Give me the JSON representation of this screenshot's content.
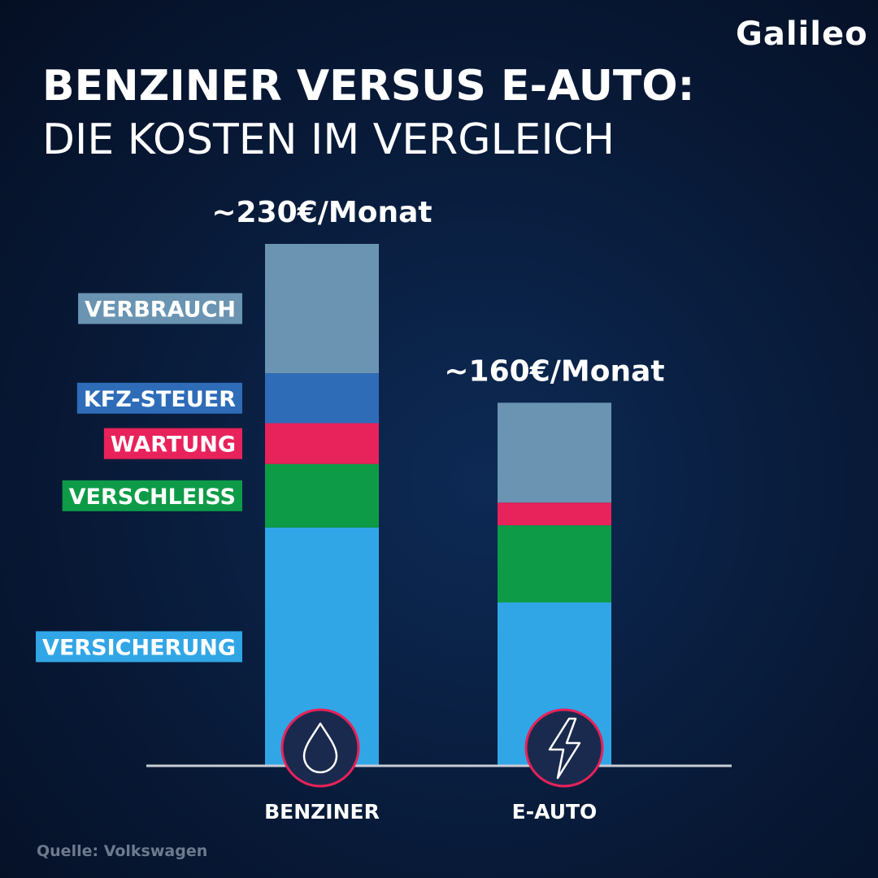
{
  "logo": "Galileo",
  "title_line1": "BENZINER VERSUS E-AUTO:",
  "title_line2": "DIE KOSTEN IM VERGLEICH",
  "source": "Quelle: Volkswagen",
  "colors": {
    "Verbrauch": "#6a94b2",
    "Kfz-Steuer": "#2e6cb8",
    "Wartung": "#e8225a",
    "Verschleiss": "#0e9b48",
    "Versicherung": "#31a6e6",
    "axis": "#c8ccd4",
    "icon_ring": "#e8225a",
    "icon_fill": "#1a2a4e"
  },
  "chart_data": {
    "type": "bar",
    "stacked": true,
    "categories": [
      "BENZINER",
      "E-AUTO"
    ],
    "unit": "€/Monat",
    "ylim": [
      0,
      230
    ],
    "totals_labels": [
      "~230€/Monat",
      "~160€/Monat"
    ],
    "legend_labels": [
      "VERBRAUCH",
      "KFZ-STEUER",
      "WARTUNG",
      "VERSCHLEISS",
      "VERSICHERUNG"
    ],
    "series": [
      {
        "name": "VERSICHERUNG",
        "values": [
          105,
          72
        ]
      },
      {
        "name": "VERSCHLEISS",
        "values": [
          28,
          34
        ]
      },
      {
        "name": "WARTUNG",
        "values": [
          18,
          10
        ]
      },
      {
        "name": "KFZ-STEUER",
        "values": [
          22,
          0
        ]
      },
      {
        "name": "VERBRAUCH",
        "values": [
          57,
          44
        ]
      }
    ],
    "icons": [
      "drop-icon",
      "lightning-icon"
    ],
    "grid": false,
    "legend": "left"
  }
}
